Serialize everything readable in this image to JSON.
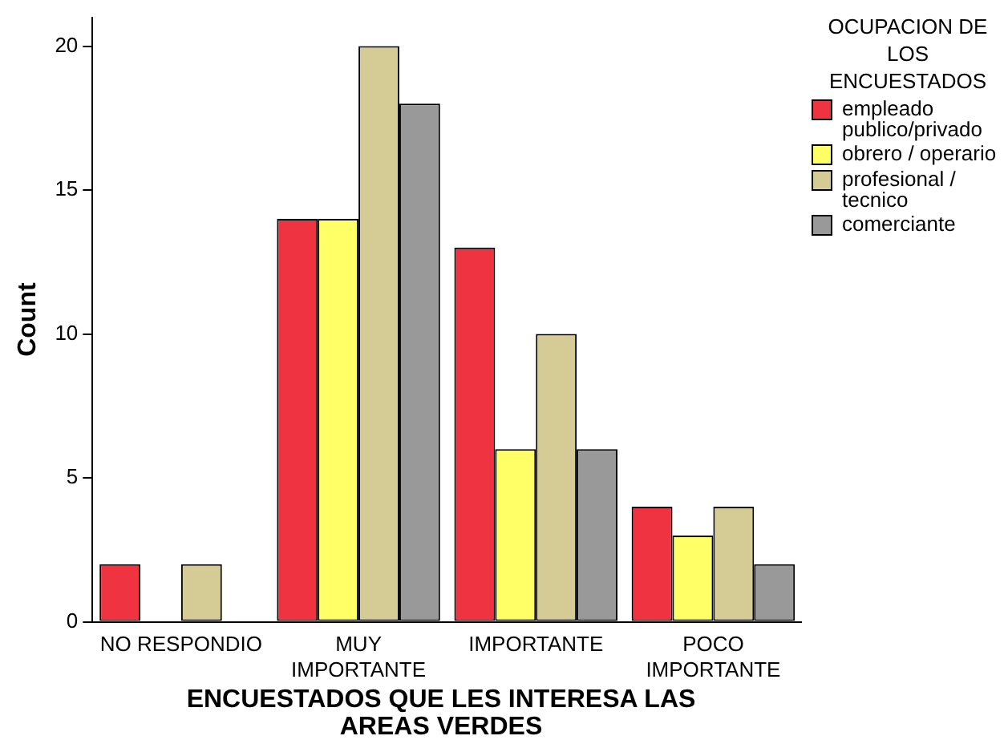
{
  "chart_data": {
    "type": "bar",
    "xlabel": "ENCUESTADOS QUE LES INTERESA LAS AREAS VERDES",
    "ylabel": "Count",
    "legend_title": "OCUPACION DE LOS ENCUESTADOS",
    "categories": [
      "NO RESPONDIO",
      "MUY IMPORTANTE",
      "IMPORTANTE",
      "POCO IMPORTANTE"
    ],
    "series": [
      {
        "name": "empleado publico/privado",
        "color": "#ef3340",
        "values": [
          2,
          14,
          13,
          4
        ]
      },
      {
        "name": "obrero / operario",
        "color": "#ffff66",
        "values": [
          0,
          14,
          6,
          3
        ]
      },
      {
        "name": "profesional / tecnico",
        "color": "#d4cc94",
        "values": [
          2,
          20,
          10,
          4
        ]
      },
      {
        "name": "comerciante",
        "color": "#999999",
        "values": [
          0,
          18,
          6,
          2
        ]
      }
    ],
    "ylim": [
      0,
      21
    ],
    "yticks": [
      0,
      5,
      10,
      15,
      20
    ],
    "grid": false,
    "legend": "right"
  }
}
